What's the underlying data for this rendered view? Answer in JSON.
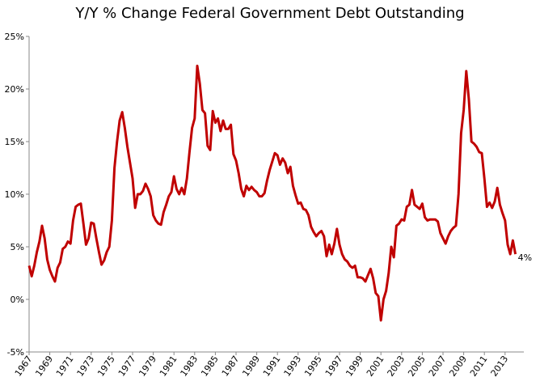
{
  "chart_data": {
    "type": "line",
    "title": "Y/Y % Change Federal Government Debt Outstanding",
    "categories": [
      "1967",
      null,
      null,
      null,
      null,
      null,
      null,
      null,
      "1969",
      null,
      null,
      null,
      null,
      null,
      null,
      null,
      "1971",
      null,
      null,
      null,
      null,
      null,
      null,
      null,
      "1973",
      null,
      null,
      null,
      null,
      null,
      null,
      null,
      "1975",
      null,
      null,
      null,
      null,
      null,
      null,
      null,
      "1977",
      null,
      null,
      null,
      null,
      null,
      null,
      null,
      "1979",
      null,
      null,
      null,
      null,
      null,
      null,
      null,
      "1981",
      null,
      null,
      null,
      null,
      null,
      null,
      null,
      "1983",
      null,
      null,
      null,
      null,
      null,
      null,
      null,
      "1985",
      null,
      null,
      null,
      null,
      null,
      null,
      null,
      "1987",
      null,
      null,
      null,
      null,
      null,
      null,
      null,
      "1989",
      null,
      null,
      null,
      null,
      null,
      null,
      null,
      "1991",
      null,
      null,
      null,
      null,
      null,
      null,
      null,
      "1993",
      null,
      null,
      null,
      null,
      null,
      null,
      null,
      "1995",
      null,
      null,
      null,
      null,
      null,
      null,
      null,
      "1997",
      null,
      null,
      null,
      null,
      null,
      null,
      null,
      "1999",
      null,
      null,
      null,
      null,
      null,
      null,
      null,
      "2001",
      null,
      null,
      null,
      null,
      null,
      null,
      null,
      "2003",
      null,
      null,
      null,
      null,
      null,
      null,
      null,
      "2005",
      null,
      null,
      null,
      null,
      null,
      null,
      null,
      "2007",
      null,
      null,
      null,
      null,
      null,
      null,
      null,
      "2009",
      null,
      null,
      null,
      null,
      null,
      null,
      null,
      "2011",
      null,
      null,
      null,
      null,
      null,
      null,
      null,
      "2013",
      null,
      null,
      null,
      null
    ],
    "series": [
      {
        "color": "#c00000",
        "values": [
          3.2,
          2.2,
          3.2,
          4.5,
          5.5,
          7.0,
          5.8,
          3.8,
          2.8,
          2.2,
          1.7,
          3.0,
          3.5,
          4.8,
          5.0,
          5.5,
          5.3,
          7.5,
          8.8,
          9.0,
          9.1,
          7.2,
          5.2,
          5.8,
          7.3,
          7.2,
          5.8,
          4.5,
          3.3,
          3.7,
          4.5,
          5.0,
          7.5,
          12.5,
          15.0,
          17.0,
          17.8,
          16.3,
          14.5,
          13.0,
          11.5,
          8.7,
          10.0,
          10.0,
          10.3,
          11.0,
          10.5,
          9.8,
          8.0,
          7.5,
          7.2,
          7.1,
          8.3,
          9.0,
          9.8,
          10.2,
          11.7,
          10.5,
          10.0,
          10.6,
          10.0,
          11.5,
          14.0,
          16.3,
          17.2,
          22.2,
          20.5,
          18.0,
          17.7,
          14.6,
          14.2,
          17.9,
          16.8,
          17.2,
          16.0,
          17.0,
          16.2,
          16.2,
          16.6,
          13.8,
          13.2,
          12.0,
          10.5,
          9.8,
          10.8,
          10.4,
          10.7,
          10.4,
          10.2,
          9.8,
          9.8,
          10.1,
          11.3,
          12.3,
          13.1,
          13.9,
          13.7,
          12.8,
          13.4,
          13.0,
          12.0,
          12.6,
          10.8,
          9.9,
          9.1,
          9.2,
          8.6,
          8.5,
          8.0,
          6.9,
          6.4,
          6.0,
          6.3,
          6.5,
          6.0,
          4.1,
          5.2,
          4.3,
          5.3,
          6.7,
          5.2,
          4.3,
          3.8,
          3.6,
          3.2,
          3.0,
          3.2,
          2.1,
          2.1,
          2.0,
          1.7,
          2.3,
          2.9,
          2.0,
          0.6,
          0.3,
          -2.0,
          0.0,
          0.8,
          2.5,
          5.0,
          4.0,
          7.0,
          7.2,
          7.6,
          7.5,
          8.8,
          9.0,
          10.4,
          9.0,
          8.8,
          8.6,
          9.1,
          7.8,
          7.5,
          7.6,
          7.6,
          7.6,
          7.4,
          6.3,
          5.8,
          5.3,
          6.0,
          6.5,
          6.8,
          7.0,
          10.0,
          15.8,
          18.0,
          21.7,
          19.0,
          15.0,
          14.8,
          14.5,
          14.0,
          13.9,
          11.5,
          8.8,
          9.2,
          8.7,
          9.3,
          10.6,
          9.0,
          8.2,
          7.5,
          5.2,
          4.3,
          5.6,
          4.3
        ],
        "value_labels": [
          null,
          null,
          null,
          null,
          null,
          null,
          null,
          null,
          null,
          null,
          null,
          null,
          null,
          null,
          null,
          null,
          null,
          null,
          null,
          null,
          null,
          null,
          null,
          null,
          null,
          null,
          null,
          null,
          null,
          null,
          null,
          null,
          null,
          null,
          null,
          null,
          null,
          null,
          null,
          null,
          null,
          null,
          null,
          null,
          null,
          null,
          null,
          null,
          null,
          null,
          null,
          null,
          null,
          null,
          null,
          null,
          null,
          null,
          null,
          null,
          null,
          null,
          null,
          null,
          null,
          null,
          null,
          null,
          null,
          null,
          null,
          null,
          null,
          null,
          null,
          null,
          null,
          null,
          null,
          null,
          null,
          null,
          null,
          null,
          null,
          null,
          null,
          null,
          null,
          null,
          null,
          null,
          null,
          null,
          null,
          null,
          null,
          null,
          null,
          null,
          null,
          null,
          null,
          null,
          null,
          null,
          null,
          null,
          null,
          null,
          null,
          null,
          null,
          null,
          null,
          null,
          null,
          null,
          null,
          null,
          null,
          null,
          null,
          null,
          null,
          null,
          null,
          null,
          null,
          null,
          null,
          null,
          null,
          null,
          null,
          null,
          null,
          null,
          null,
          null,
          null,
          null,
          null,
          null,
          null,
          null,
          null,
          null,
          null,
          null,
          null,
          null,
          null,
          null,
          null,
          null,
          null,
          null,
          null,
          null,
          null,
          null,
          null,
          null,
          null,
          null,
          null,
          null,
          null,
          null,
          null,
          null,
          null,
          null,
          null,
          null,
          null,
          null,
          null,
          null,
          null,
          null,
          null,
          null,
          null,
          null,
          null,
          null,
          "4%"
        ]
      }
    ],
    "ylim": [
      -5,
      25
    ],
    "yticks": [
      {
        "value": -5,
        "label": "-5%"
      },
      {
        "value": 0,
        "label": "0%"
      },
      {
        "value": 5,
        "label": "5%"
      },
      {
        "value": 10,
        "label": "10%"
      },
      {
        "value": 15,
        "label": "15%"
      },
      {
        "value": 20,
        "label": "20%"
      },
      {
        "value": 25,
        "label": "25%"
      }
    ],
    "grid": false
  }
}
